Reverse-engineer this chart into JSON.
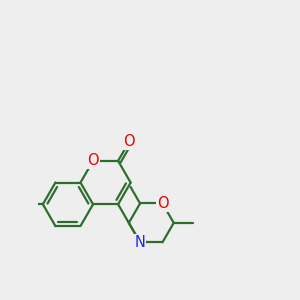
{
  "background_color": "#eeeeee",
  "bond_color": "#2d6e2d",
  "atom_colors": {
    "O": "#ee0000",
    "N": "#2222ee"
  },
  "bond_lw": 1.6,
  "font_size": 10.5,
  "figsize": [
    3.0,
    3.0
  ],
  "dpi": 100,
  "xlim": [
    -1.2,
    5.8
  ],
  "ylim": [
    -3.5,
    3.5
  ]
}
